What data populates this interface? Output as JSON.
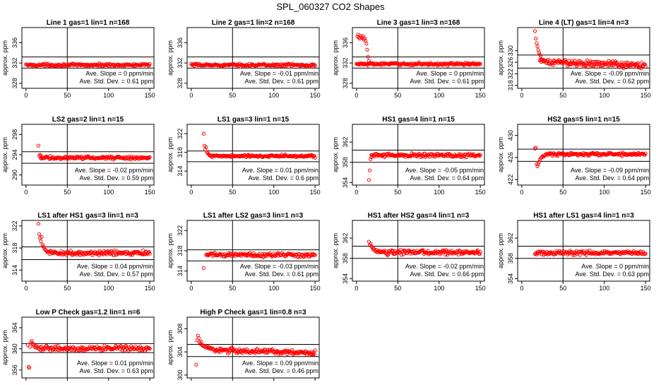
{
  "page_title": "SPL_060327  CO2 Shapes",
  "chart_data": [
    {
      "type": "scatter",
      "title": "Line 1 gas=1 lin=1 n=168",
      "ylabel": "approx. ppm",
      "xlim": [
        -5,
        155
      ],
      "ylim": [
        327,
        339
      ],
      "xticks": [
        0,
        50,
        100,
        150
      ],
      "yticks": [
        328,
        332,
        336
      ],
      "hlines": [
        333.2,
        331
      ],
      "vline": 50,
      "slope_text": "Ave. Slope =  0 ppm/min",
      "sd_text": "Ave. Std. Dev. =  0.61  ppm",
      "series": {
        "x_start": 0,
        "x_end": 150,
        "n": 168,
        "base": 331.6,
        "noise": 0.12,
        "initial": []
      }
    },
    {
      "type": "scatter",
      "title": "Line 2 gas=1 lin=2 n=168",
      "ylabel": "approx. ppm",
      "xlim": [
        -5,
        155
      ],
      "ylim": [
        327,
        339
      ],
      "xticks": [
        0,
        50,
        100,
        150
      ],
      "yticks": [
        328,
        332,
        336
      ],
      "hlines": [
        333.2,
        331
      ],
      "vline": 50,
      "slope_text": "Ave. Slope =  -0.01  ppm/min",
      "sd_text": "Ave. Std. Dev. =  0.61  ppm",
      "series": {
        "x_start": 0,
        "x_end": 150,
        "n": 168,
        "base": 331.6,
        "noise": 0.12,
        "initial": []
      }
    },
    {
      "type": "scatter",
      "title": "Line 3 gas=1 lin=3 n=168",
      "ylabel": "approx. ppm",
      "xlim": [
        -5,
        155
      ],
      "ylim": [
        327,
        339
      ],
      "xticks": [
        0,
        50,
        100,
        150
      ],
      "yticks": [
        328,
        332,
        336
      ],
      "hlines": [
        333.2,
        331
      ],
      "vline": 50,
      "slope_text": "Ave. Slope =  0 ppm/min",
      "sd_text": "Ave. Std. Dev. =  0.61  ppm",
      "series": {
        "x_start": 0,
        "x_end": 150,
        "n": 168,
        "base": 331.8,
        "noise": 0.12,
        "initial": [
          [
            1,
            337.2
          ],
          [
            2,
            337.6
          ],
          [
            3,
            337.0
          ],
          [
            4,
            336.8
          ],
          [
            5,
            337.4
          ],
          [
            6,
            337.1
          ],
          [
            7,
            336.9
          ],
          [
            8,
            337.3
          ],
          [
            9,
            336.6
          ],
          [
            10,
            336.9
          ],
          [
            11,
            336.4
          ],
          [
            12,
            335.8
          ],
          [
            13,
            334.6
          ],
          [
            14,
            333.2
          ],
          [
            15,
            332.4
          ],
          [
            16,
            332.0
          ]
        ]
      }
    },
    {
      "type": "scatter",
      "title": "Line 4 (LT) gas=1 lin=4 n=3",
      "ylabel": "approx. ppm",
      "xlim": [
        -5,
        155
      ],
      "ylim": [
        317,
        338
      ],
      "xticks": [
        0,
        50,
        100,
        150
      ],
      "yticks": [
        318,
        322,
        326,
        330
      ],
      "hlines": [
        328.5,
        324
      ],
      "vline": 50,
      "slope_text": "Ave. Slope =  -0.09  ppm/min",
      "sd_text": "Ave. Std. Dev. =  0.62  ppm",
      "series": {
        "x_start": 22,
        "x_end": 150,
        "n": 168,
        "base": 326.2,
        "slope": -0.01,
        "noise": 0.55,
        "initial": [
          [
            16,
            336.8
          ],
          [
            17,
            334.2
          ],
          [
            18,
            332.6
          ],
          [
            19,
            331.5
          ],
          [
            20,
            330.2
          ],
          [
            21,
            329.3
          ],
          [
            22,
            328.6
          ],
          [
            23,
            328.1
          ]
        ]
      }
    },
    {
      "type": "scatter",
      "title": "LS2 gas=2 lin=1 n=15",
      "ylabel": "approx. ppm",
      "xlim": [
        -5,
        155
      ],
      "ylim": [
        288,
        300
      ],
      "xticks": [
        0,
        50,
        100,
        150
      ],
      "yticks": [
        290,
        294,
        298
      ],
      "hlines": [
        294.6,
        292.3
      ],
      "vline": 50,
      "slope_text": "Ave. Slope =  -0.02  ppm/min",
      "sd_text": "Ave. Std. Dev. =  0.59  ppm",
      "series": {
        "x_start": 18,
        "x_end": 150,
        "n": 150,
        "base": 293.4,
        "noise": 0.15,
        "initial": [
          [
            15,
            295.8
          ],
          [
            16,
            293.7
          ],
          [
            17,
            294.0
          ],
          [
            18,
            293.8
          ]
        ]
      }
    },
    {
      "type": "scatter",
      "title": "LS1 gas=3 lin=1 n=15",
      "ylabel": "approx. ppm",
      "xlim": [
        -5,
        155
      ],
      "ylim": [
        311,
        324
      ],
      "xticks": [
        0,
        50,
        100,
        150
      ],
      "yticks": [
        314,
        318,
        322
      ],
      "hlines": [
        318.3,
        316
      ],
      "vline": 50,
      "slope_text": "Ave. Slope =  0.01  ppm/min",
      "sd_text": "Ave. Std. Dev. =  0.6  ppm",
      "series": {
        "x_start": 22,
        "x_end": 150,
        "n": 150,
        "base": 317.2,
        "noise": 0.14,
        "initial": [
          [
            15,
            322.0
          ],
          [
            16,
            319.4
          ],
          [
            17,
            318.6
          ],
          [
            18,
            319.1
          ],
          [
            19,
            318.0
          ],
          [
            20,
            317.8
          ],
          [
            21,
            317.6
          ]
        ]
      }
    },
    {
      "type": "scatter",
      "title": "HS1 gas=4 lin=1 n=15",
      "ylabel": "approx. ppm",
      "xlim": [
        -5,
        155
      ],
      "ylim": [
        353.5,
        365.5
      ],
      "xticks": [
        0,
        50,
        100,
        150
      ],
      "yticks": [
        354,
        358,
        362
      ],
      "hlines": [
        360.4,
        358
      ],
      "vline": 50,
      "slope_text": "Ave. Slope =  -0.05  ppm/min",
      "sd_text": "Ave. Std. Dev. =  0.64  ppm",
      "series": {
        "x_start": 18,
        "x_end": 150,
        "n": 150,
        "base": 359.4,
        "noise": 0.18,
        "initial": [
          [
            15,
            354.5
          ],
          [
            16,
            356.4
          ],
          [
            17,
            358.6
          ],
          [
            18,
            359.0
          ]
        ]
      }
    },
    {
      "type": "scatter",
      "title": "HS2 gas=5 lin=1 n=15",
      "ylabel": "approx. ppm",
      "xlim": [
        -5,
        155
      ],
      "ylim": [
        421,
        432
      ],
      "xticks": [
        0,
        50,
        100,
        150
      ],
      "yticks": [
        422,
        426,
        430
      ],
      "hlines": [
        427.5,
        425.3
      ],
      "vline": 50,
      "slope_text": "Ave. Slope =  -0.09  ppm/min",
      "sd_text": "Ave. Std. Dev. =  0.64  ppm",
      "series": {
        "x_start": 30,
        "x_end": 150,
        "n": 140,
        "base": 426.6,
        "noise": 0.14,
        "initial": [
          [
            16,
            427.6
          ],
          [
            17,
            427.8
          ],
          [
            18,
            424.8
          ],
          [
            19,
            424.4
          ],
          [
            20,
            424.8
          ],
          [
            21,
            425.2
          ],
          [
            22,
            425.6
          ],
          [
            23,
            425.9
          ],
          [
            24,
            426.0
          ],
          [
            25,
            426.2
          ],
          [
            26,
            426.1
          ],
          [
            27,
            426.4
          ],
          [
            28,
            426.3
          ],
          [
            29,
            426.5
          ]
        ]
      }
    },
    {
      "type": "scatter",
      "title": "LS1 after HS1 gas=3 lin=1 n=3",
      "ylabel": "approx. ppm",
      "xlim": [
        -5,
        155
      ],
      "ylim": [
        312,
        323
      ],
      "xticks": [
        0,
        50,
        100,
        150
      ],
      "yticks": [
        314,
        318,
        322
      ],
      "hlines": [
        318.2,
        315.9
      ],
      "vline": 50,
      "slope_text": "Ave. Slope =  0.04  ppm/min",
      "sd_text": "Ave. Std. Dev. =  0.57  ppm",
      "series": {
        "x_start": 28,
        "x_end": 150,
        "n": 150,
        "base": 317.1,
        "noise": 0.2,
        "initial": [
          [
            15,
            322.4
          ],
          [
            16,
            320.5
          ],
          [
            17,
            319.8
          ],
          [
            18,
            319.2
          ],
          [
            19,
            320.0
          ],
          [
            20,
            318.6
          ],
          [
            21,
            318.3
          ],
          [
            22,
            318.0
          ],
          [
            23,
            317.7
          ],
          [
            24,
            317.6
          ],
          [
            25,
            317.4
          ],
          [
            26,
            317.2
          ],
          [
            27,
            317.3
          ]
        ]
      }
    },
    {
      "type": "scatter",
      "title": "LS1 after LS2 gas=3 lin=1 n=3",
      "ylabel": "approx. ppm",
      "xlim": [
        -5,
        155
      ],
      "ylim": [
        312,
        324
      ],
      "xticks": [
        0,
        50,
        100,
        150
      ],
      "yticks": [
        314,
        318,
        322
      ],
      "hlines": [
        318.2,
        316
      ],
      "vline": 50,
      "slope_text": "Ave. Slope =  -0.03  ppm/min",
      "sd_text": "Ave. Std. Dev. =  0.61  ppm",
      "series": {
        "x_start": 18,
        "x_end": 150,
        "n": 150,
        "base": 317.2,
        "noise": 0.22,
        "initial": [
          [
            15,
            314.6
          ]
        ]
      }
    },
    {
      "type": "scatter",
      "title": "HS1 after HS2 gas=4 lin=1 n=3",
      "ylabel": "approx. ppm",
      "xlim": [
        -5,
        155
      ],
      "ylim": [
        353.5,
        365.5
      ],
      "xticks": [
        0,
        50,
        100,
        150
      ],
      "yticks": [
        354,
        358,
        362
      ],
      "hlines": [
        360.4,
        358
      ],
      "vline": 50,
      "slope_text": "Ave. Slope =  -0.02  ppm/min",
      "sd_text": "Ave. Std. Dev. =  0.66  ppm",
      "series": {
        "x_start": 24,
        "x_end": 150,
        "n": 150,
        "base": 359.2,
        "noise": 0.22,
        "initial": [
          [
            15,
            361.3
          ],
          [
            16,
            360.6
          ],
          [
            17,
            360.9
          ],
          [
            18,
            360.4
          ],
          [
            19,
            360.2
          ],
          [
            20,
            359.8
          ],
          [
            21,
            359.9
          ],
          [
            22,
            359.6
          ],
          [
            23,
            359.4
          ]
        ]
      }
    },
    {
      "type": "scatter",
      "title": "HS1 after LS1 gas=4 lin=1 n=3",
      "ylabel": "approx. ppm",
      "xlim": [
        -5,
        155
      ],
      "ylim": [
        353.5,
        365.5
      ],
      "xticks": [
        0,
        50,
        100,
        150
      ],
      "yticks": [
        354,
        358,
        362
      ],
      "hlines": [
        360.4,
        358
      ],
      "vline": 50,
      "slope_text": "Ave. Slope =  0 ppm/min",
      "sd_text": "Ave. Std. Dev. =  0.63  ppm",
      "series": {
        "x_start": 16,
        "x_end": 150,
        "n": 150,
        "base": 359.1,
        "noise": 0.2,
        "initial": []
      }
    },
    {
      "type": "scatter",
      "title": "Low P Check gas=1.2 lin=1 n=6",
      "ylabel": "approx. ppm",
      "xlim": [
        -5,
        155
      ],
      "ylim": [
        354.5,
        366
      ],
      "xticks": [
        0,
        50,
        100,
        150
      ],
      "yticks": [
        356,
        360,
        364
      ],
      "hlines": [
        361,
        359.3
      ],
      "vline": 50,
      "slope_text": "Ave. Slope =  0.01  ppm/min",
      "sd_text": "Ave. Std. Dev. =  0.63  ppm",
      "series": {
        "x_start": 16,
        "x_end": 150,
        "n": 150,
        "base": 360.1,
        "noise": 0.22,
        "initial": [
          [
            2,
            360.7
          ],
          [
            3,
            356.6
          ],
          [
            4,
            356.4
          ],
          [
            5,
            360.4
          ],
          [
            6,
            361.2
          ],
          [
            7,
            361.5
          ],
          [
            8,
            361.0
          ],
          [
            9,
            360.8
          ],
          [
            10,
            360.5
          ],
          [
            11,
            360.3
          ],
          [
            12,
            360.6
          ],
          [
            13,
            360.2
          ],
          [
            14,
            360.4
          ],
          [
            15,
            360.1
          ]
        ]
      }
    },
    {
      "type": "scatter",
      "title": "High P Check gas=1 lin=0.8 n=3",
      "ylabel": "approx. ppm",
      "xlim": [
        -5,
        155
      ],
      "ylim": [
        299.5,
        310
      ],
      "xticks": [
        0,
        50,
        100,
        150
      ],
      "yticks": [
        300,
        304,
        308
      ],
      "hlines": [
        305.3,
        303.2
      ],
      "vline": 50,
      "slope_text": "Ave. Slope =  0.09  ppm/min",
      "sd_text": "Ave. Std. Dev. =  0.46  ppm",
      "series": {
        "x_start": 28,
        "x_end": 150,
        "n": 150,
        "base": 304.3,
        "slope": -0.004,
        "noise": 0.2,
        "initial": [
          [
            6,
            301.8
          ],
          [
            7,
            306.0
          ],
          [
            8,
            306.8
          ],
          [
            9,
            306.4
          ],
          [
            10,
            305.7
          ],
          [
            11,
            305.4
          ],
          [
            12,
            305.8
          ],
          [
            13,
            305.2
          ],
          [
            14,
            305.0
          ],
          [
            15,
            305.1
          ],
          [
            16,
            304.9
          ],
          [
            17,
            304.8
          ],
          [
            18,
            305.0
          ],
          [
            19,
            304.7
          ],
          [
            20,
            304.9
          ],
          [
            21,
            304.6
          ],
          [
            22,
            304.8
          ],
          [
            23,
            304.5
          ],
          [
            24,
            304.7
          ],
          [
            25,
            304.5
          ],
          [
            26,
            304.6
          ],
          [
            27,
            304.4
          ]
        ]
      }
    }
  ]
}
